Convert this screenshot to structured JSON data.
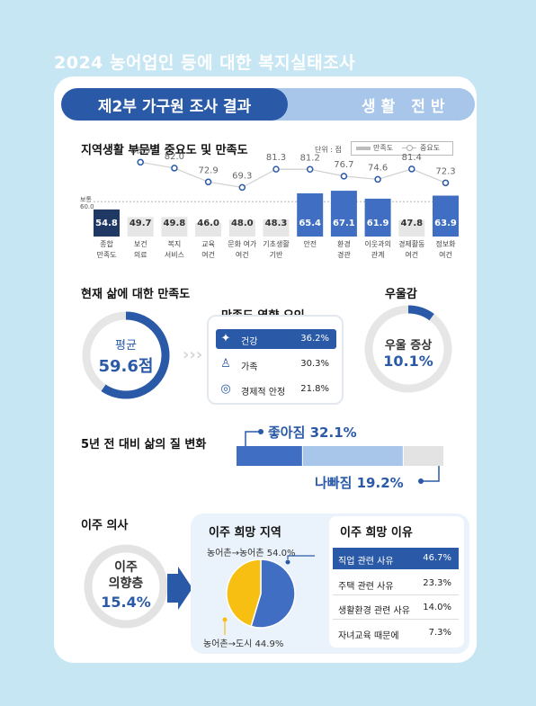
{
  "title": "2024 농어업인 등에 대한 복지실태조사",
  "header": {
    "part": "제2부 가구원 조사 결과",
    "section": "생활 전반"
  },
  "regional": {
    "title": "지역생활 부문별 중요도 및 만족도",
    "unit": "단위 : 점",
    "legend_satisfaction": "만족도",
    "legend_importance": "중요도",
    "baseline_label": "보통",
    "baseline_value": "60.0"
  },
  "life_satisfaction": {
    "title": "현재 삶에 대한 만족도",
    "avg_label": "평균",
    "avg_value": "59.6점",
    "factors_title": "만족도 영향 요인",
    "factors": [
      {
        "label": "건강",
        "value": "36.2%"
      },
      {
        "label": "가족",
        "value": "30.3%"
      },
      {
        "label": "경제적 안정",
        "value": "21.8%"
      }
    ]
  },
  "depression": {
    "title": "우울감",
    "label": "우울 증상",
    "value": "10.1%"
  },
  "life_change": {
    "title": "5년 전 대비 삶의 질 변화",
    "better_label": "좋아짐 32.1%",
    "worse_label": "나빠짐 19.2%"
  },
  "migration": {
    "title": "이주 의사",
    "intent_label1": "이주",
    "intent_label2": "의향층",
    "intent_value": "15.4%",
    "region_title": "이주 희망 지역",
    "rural_to_rural": "농어촌→농어촌 54.0%",
    "rural_to_city": "농어촌→도시 44.9%",
    "reason_title": "이주 희망 이유",
    "reasons": [
      {
        "label": "직업 관련 사유",
        "value": "46.7%"
      },
      {
        "label": "주택 관련 사유",
        "value": "23.3%"
      },
      {
        "label": "생활환경 관련 사유",
        "value": "14.0%"
      },
      {
        "label": "자녀교육 때문에",
        "value": "7.3%"
      }
    ]
  },
  "colors": {
    "primary": "#2a5aa7",
    "navy": "#1f3864",
    "light_blue": "#a7c6ea",
    "gray_bar": "#e6e6e6",
    "yellow": "#f7bf12"
  },
  "chart_data": [
    {
      "type": "bar",
      "title": "지역생활 부문별 중요도 및 만족도",
      "categories": [
        "종합 만족도",
        "보건 의료",
        "복지 서비스",
        "교육 여건",
        "문화 여가 여건",
        "기초생활 기반",
        "안전",
        "환경 경관",
        "이웃과의 관계",
        "경제활동 여건",
        "정보화 여건"
      ],
      "category_lines": [
        [
          "종합",
          "만족도"
        ],
        [
          "보건",
          "의료"
        ],
        [
          "복지",
          "서비스"
        ],
        [
          "교육",
          "여건"
        ],
        [
          "문화 여가",
          "여건"
        ],
        [
          "기초생활",
          "기반"
        ],
        [
          "안전",
          ""
        ],
        [
          "환경",
          "경관"
        ],
        [
          "이웃과의",
          "관계"
        ],
        [
          "경제활동",
          "여건"
        ],
        [
          "정보화",
          "여건"
        ]
      ],
      "series": [
        {
          "name": "만족도",
          "values": [
            54.8,
            49.7,
            49.8,
            46.0,
            48.0,
            48.3,
            65.4,
            67.1,
            61.9,
            47.8,
            63.9
          ]
        },
        {
          "name": "중요도",
          "values": [
            null,
            85.9,
            82.0,
            72.9,
            69.3,
            81.3,
            81.2,
            76.7,
            74.6,
            81.4,
            72.3
          ]
        }
      ],
      "baseline": 60.0,
      "legend": "top-right"
    },
    {
      "type": "pie",
      "title": "이주 희망 지역",
      "categories": [
        "농어촌→농어촌",
        "농어촌→도시"
      ],
      "values": [
        54.0,
        44.9
      ]
    },
    {
      "type": "bar",
      "title": "5년 전 대비 삶의 질 변화",
      "categories": [
        "좋아짐",
        "나빠짐"
      ],
      "values": [
        32.1,
        19.2
      ]
    }
  ]
}
